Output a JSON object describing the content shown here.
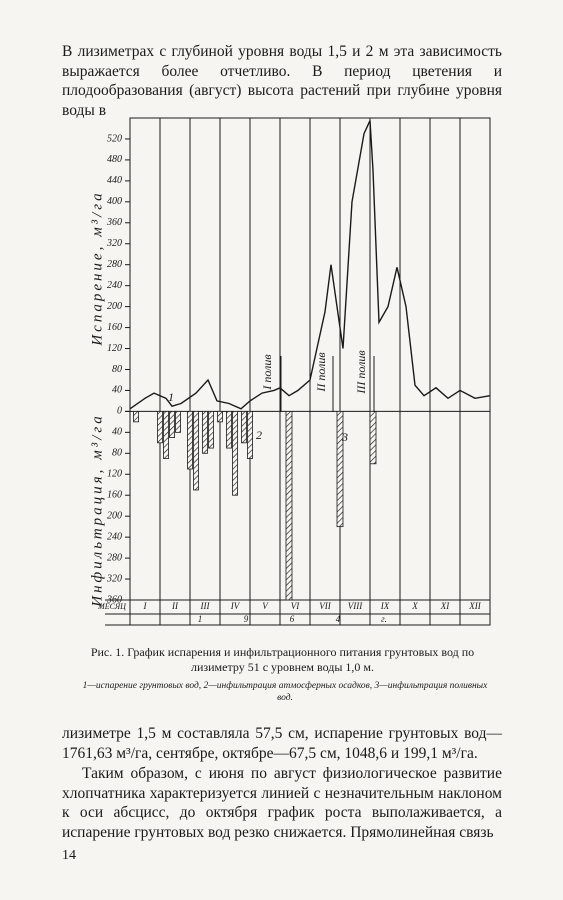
{
  "paragraphs": [
    "В лизиметрах с глубиной уровня воды 1,5 и 2 м эта зависимость выражается более отчетливо. В период цветения и плодообразования (август) высота растений при глубине уровня воды в",
    "лизиметре 1,5 м составляла 57,5 см, испарение грунтовых вод— 1761,63 м³/га, сентябре, октябре—67,5 см, 1048,6 и 199,1 м³/га.",
    "Таким образом, с июня по август физиологическое развитие хлопчатника характеризуется линией с незначительным наклоном к оси абсцисс, до октября график роста выполаживается, а испарение грунтовых вод резко снижается. Прямолинейная связь"
  ],
  "figure": {
    "caption": "Рис. 1. График испарения и инфильтрационного питания грунтовых вод по лизиметру 51 с уровнем воды 1,0 м.",
    "note": "1—испарение грунтовых вод, 2—инфильтрация атмосферных осадков, 3—инфильтрация поливных вод.",
    "chart": {
      "type": "line",
      "y_label_top": "Испарение, м³/га",
      "y_label_bottom": "Инфильтрация, м³/га",
      "month_label": "МЕСЯЦ",
      "categories": [
        "I",
        "II",
        "III",
        "IV",
        "V",
        "VI",
        "VII",
        "VIII",
        "IX",
        "X",
        "XI",
        "XII"
      ],
      "year_digits": [
        "1",
        "9",
        "6",
        "4",
        "г."
      ],
      "annotations": [
        "1",
        "2",
        "3",
        "I полив",
        "II полив",
        "III полив"
      ],
      "xlim": [
        0,
        12
      ],
      "ylim": [
        -360,
        560
      ],
      "yticks": [
        520,
        480,
        440,
        400,
        360,
        320,
        280,
        240,
        200,
        160,
        120,
        80,
        40,
        0,
        {
          "value": -40,
          "label": "40"
        },
        {
          "value": -80,
          "label": "80"
        },
        {
          "value": -120,
          "label": "120"
        },
        {
          "value": -160,
          "label": "160"
        },
        {
          "value": -200,
          "label": "200"
        },
        {
          "value": -240,
          "label": "240"
        },
        {
          "value": -280,
          "label": "280"
        },
        {
          "value": -320,
          "label": "320"
        },
        {
          "value": -360,
          "label": "360"
        }
      ],
      "series": [
        {
          "name": "1",
          "kind": "line",
          "color": "#1a1a1a",
          "x": [
            0,
            0.5,
            0.8,
            1.2,
            1.4,
            1.7,
            2.2,
            2.6,
            2.9,
            3.3,
            3.7,
            4.0,
            4.4,
            4.8,
            5.0,
            5.3,
            5.6,
            6.0,
            6.5,
            6.7,
            7.0,
            7.1,
            7.4,
            7.8,
            8.0,
            8.1,
            8.3,
            8.6,
            8.9,
            9.2,
            9.5,
            9.8,
            10.2,
            10.6,
            11.0,
            11.5,
            12.0
          ],
          "values": [
            5,
            25,
            35,
            25,
            10,
            15,
            35,
            60,
            20,
            15,
            5,
            20,
            35,
            40,
            45,
            30,
            40,
            60,
            190,
            280,
            160,
            120,
            400,
            530,
            555,
            460,
            170,
            200,
            275,
            200,
            50,
            30,
            45,
            25,
            40,
            25,
            30
          ]
        },
        {
          "name": "2",
          "kind": "bar",
          "color": "#1a1a1a",
          "x": [
            0.2,
            1.0,
            1.2,
            1.4,
            1.6,
            2.0,
            2.2,
            2.5,
            2.7,
            3.0,
            3.3,
            3.5,
            3.8,
            4.0
          ],
          "values": [
            -20,
            -60,
            -90,
            -50,
            -40,
            -110,
            -150,
            -80,
            -70,
            -20,
            -70,
            -160,
            -60,
            -90
          ]
        },
        {
          "name": "3",
          "kind": "bar",
          "color": "#1a1a1a",
          "x": [
            5.3,
            7.0,
            8.1
          ],
          "values": [
            -360,
            -220,
            -100
          ]
        }
      ]
    }
  },
  "page_number": "14"
}
